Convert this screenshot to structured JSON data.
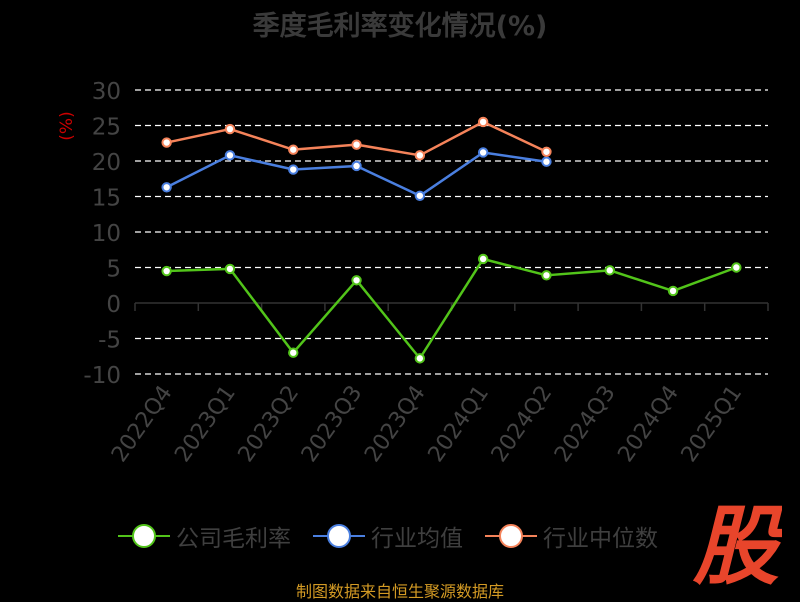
{
  "title": "季度毛利率变化情况(%)",
  "source": "制图数据来自恒生聚源数据库",
  "logo_text": "股",
  "chart_data": {
    "type": "line",
    "title": "季度毛利率变化情况(%)",
    "xlabel": "",
    "ylabel": "(%)",
    "ylim": [
      -10,
      30
    ],
    "yticks": [
      -10,
      -5,
      0,
      5,
      10,
      15,
      20,
      25,
      30
    ],
    "grid": true,
    "legend_position": "bottom",
    "categories": [
      "2022Q4",
      "2023Q1",
      "2023Q2",
      "2023Q3",
      "2023Q4",
      "2024Q1",
      "2024Q2",
      "2024Q3",
      "2024Q4",
      "2025Q1"
    ],
    "series": [
      {
        "name": "公司毛利率",
        "color": "#52c41a",
        "values": [
          4.5,
          4.8,
          -7.0,
          3.2,
          -7.8,
          6.2,
          3.9,
          4.6,
          1.7,
          5.0
        ]
      },
      {
        "name": "行业均值",
        "color": "#4a7fe0",
        "values": [
          16.3,
          20.8,
          18.8,
          19.3,
          15.1,
          21.2,
          19.9,
          null,
          null,
          null
        ]
      },
      {
        "name": "行业中位数",
        "color": "#f5835a",
        "values": [
          22.6,
          24.5,
          21.6,
          22.3,
          20.8,
          25.5,
          21.3,
          null,
          null,
          null
        ]
      }
    ]
  }
}
